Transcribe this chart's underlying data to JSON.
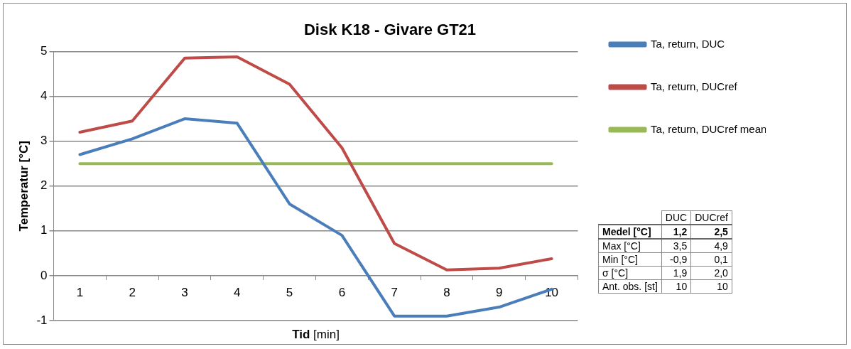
{
  "chart_data": {
    "type": "line",
    "title": "Disk K18 - Givare GT21",
    "xlabel": "Tid [min]",
    "ylabel": "Temperatur [°C]",
    "categories": [
      "1",
      "2",
      "3",
      "4",
      "5",
      "6",
      "7",
      "8",
      "9",
      "10"
    ],
    "series": [
      {
        "name": "Ta, return, DUC",
        "color": "#4a7ebb",
        "values": [
          2.7,
          3.05,
          3.5,
          3.4,
          1.6,
          0.9,
          -0.9,
          -0.9,
          -0.7,
          -0.3
        ]
      },
      {
        "name": "Ta, return, DUCref",
        "color": "#be4b48",
        "values": [
          3.2,
          3.45,
          4.85,
          4.88,
          4.27,
          2.85,
          0.72,
          0.13,
          0.17,
          0.38
        ]
      },
      {
        "name": "Ta, return, DUCref mean",
        "color": "#98b954",
        "values": [
          2.5,
          2.5,
          2.5,
          2.5,
          2.5,
          2.5,
          2.5,
          2.5,
          2.5,
          2.5
        ]
      }
    ],
    "ylim": [
      -1,
      5
    ],
    "yticks": [
      -1,
      0,
      1,
      2,
      3,
      4,
      5
    ],
    "grid": "y",
    "legend": "right",
    "marker": "none",
    "line_style": "solid",
    "annotations": [
      "DUC",
      "DUCref",
      "Medel [°C]",
      "1,2",
      "2,5",
      "Max [°C]",
      "3,5",
      "4,9",
      "Min [°C]",
      "-0,9",
      "0,1",
      "σ  [°C]",
      "1,9",
      "2,0",
      "Ant. obs. [st]",
      "10",
      "10"
    ]
  }
}
